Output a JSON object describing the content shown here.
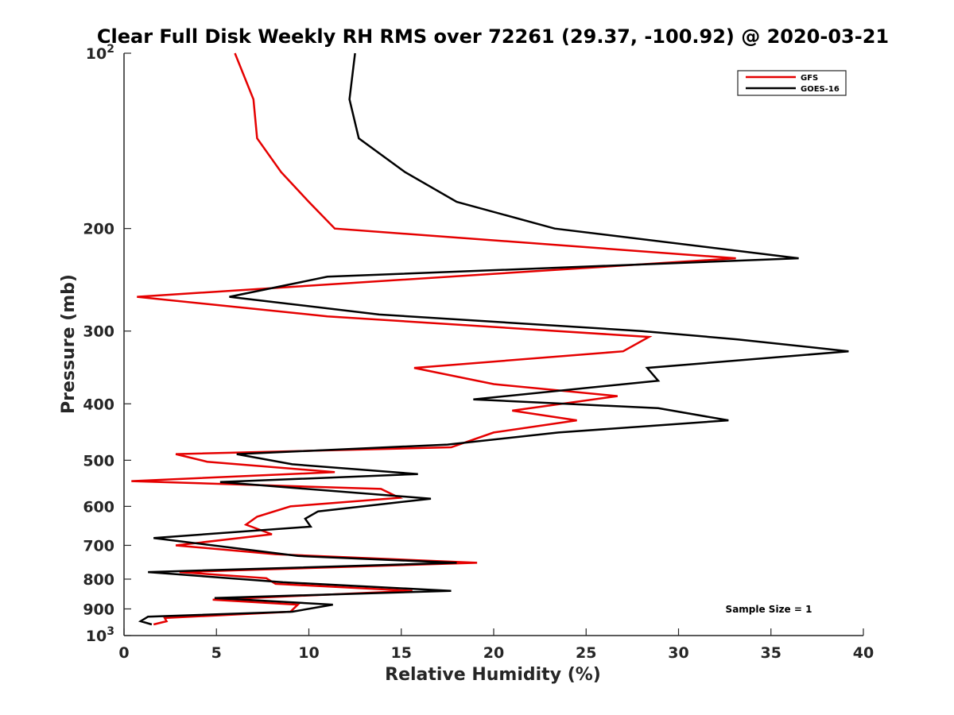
{
  "chart_data": {
    "type": "line",
    "title": "Clear Full Disk Weekly RH RMS over 72261 (29.37, -100.92) @ 2020-03-21",
    "xlabel": "Relative Humidity (%)",
    "ylabel": "Pressure (mb)",
    "xlim": [
      0,
      40
    ],
    "ylim": [
      100,
      1000
    ],
    "y_scale": "log",
    "y_reversed": true,
    "grid": false,
    "x_ticks": [
      0,
      5,
      10,
      15,
      20,
      25,
      30,
      35,
      40
    ],
    "y_ticks": [
      {
        "value": 100,
        "base": "10",
        "exp": "2"
      },
      {
        "value": 200,
        "label": "200"
      },
      {
        "value": 300,
        "label": "300"
      },
      {
        "value": 400,
        "label": "400"
      },
      {
        "value": 500,
        "label": "500"
      },
      {
        "value": 600,
        "label": "600"
      },
      {
        "value": 700,
        "label": "700"
      },
      {
        "value": 800,
        "label": "800"
      },
      {
        "value": 900,
        "label": "900"
      },
      {
        "value": 1000,
        "base": "10",
        "exp": "3"
      }
    ],
    "legend_position": "top-right",
    "series": [
      {
        "name": "GFS",
        "color": "#e50000",
        "points": [
          [
            6.0,
            100
          ],
          [
            7.0,
            120
          ],
          [
            7.2,
            140
          ],
          [
            8.5,
            160
          ],
          [
            10.0,
            180
          ],
          [
            11.4,
            200
          ],
          [
            33.1,
            225
          ],
          [
            0.7,
            262
          ],
          [
            11.0,
            283
          ],
          [
            28.4,
            307
          ],
          [
            27.0,
            325
          ],
          [
            15.7,
            347
          ],
          [
            20.0,
            370
          ],
          [
            26.7,
            388
          ],
          [
            21.0,
            411
          ],
          [
            24.5,
            427
          ],
          [
            20.0,
            448
          ],
          [
            17.7,
            475
          ],
          [
            2.8,
            488
          ],
          [
            4.5,
            503
          ],
          [
            11.4,
            524
          ],
          [
            0.4,
            543
          ],
          [
            13.9,
            560
          ],
          [
            14.9,
            580
          ],
          [
            9.0,
            600
          ],
          [
            7.2,
            625
          ],
          [
            6.6,
            645
          ],
          [
            8.0,
            670
          ],
          [
            2.8,
            700
          ],
          [
            8.2,
            725
          ],
          [
            19.1,
            750
          ],
          [
            3.0,
            778
          ],
          [
            7.7,
            797
          ],
          [
            8.2,
            815
          ],
          [
            15.6,
            838
          ],
          [
            4.8,
            868
          ],
          [
            9.4,
            885
          ],
          [
            9.0,
            910
          ],
          [
            2.2,
            933
          ],
          [
            2.3,
            945
          ],
          [
            1.6,
            957
          ]
        ]
      },
      {
        "name": "GOES-16",
        "color": "#000000",
        "points": [
          [
            12.5,
            100
          ],
          [
            12.2,
            120
          ],
          [
            12.7,
            140
          ],
          [
            15.2,
            160
          ],
          [
            18.0,
            180
          ],
          [
            23.3,
            200
          ],
          [
            36.5,
            225
          ],
          [
            11.0,
            242
          ],
          [
            5.7,
            262
          ],
          [
            13.8,
            281
          ],
          [
            28.0,
            300
          ],
          [
            33.2,
            310
          ],
          [
            39.2,
            325
          ],
          [
            28.3,
            347
          ],
          [
            28.9,
            365
          ],
          [
            18.9,
            393
          ],
          [
            28.9,
            407
          ],
          [
            32.7,
            427
          ],
          [
            23.5,
            448
          ],
          [
            17.5,
            470
          ],
          [
            6.1,
            488
          ],
          [
            9.1,
            508
          ],
          [
            15.9,
            528
          ],
          [
            5.2,
            545
          ],
          [
            16.6,
            582
          ],
          [
            10.5,
            612
          ],
          [
            9.8,
            630
          ],
          [
            10.1,
            650
          ],
          [
            1.6,
            680
          ],
          [
            9.4,
            730
          ],
          [
            18.0,
            750
          ],
          [
            1.3,
            778
          ],
          [
            8.6,
            810
          ],
          [
            17.7,
            838
          ],
          [
            4.9,
            862
          ],
          [
            11.3,
            885
          ],
          [
            9.1,
            910
          ],
          [
            1.3,
            928
          ],
          [
            0.9,
            945
          ],
          [
            1.5,
            957
          ]
        ]
      }
    ],
    "annotations": [
      "Sample Size = 1"
    ]
  }
}
